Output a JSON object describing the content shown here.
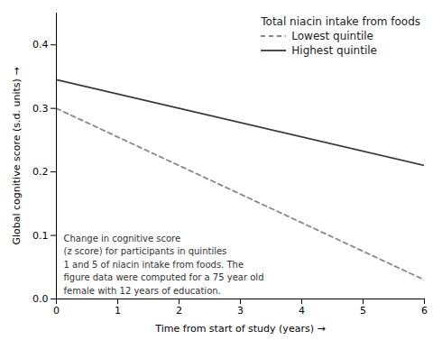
{
  "chart_data": {
    "type": "line",
    "xlabel": "Time from start of study (years)",
    "ylabel": "Global cognitive score (s.d. units)",
    "xlim": [
      0,
      6
    ],
    "ylim": [
      0.0,
      0.45
    ],
    "xticks": [
      0,
      1,
      2,
      3,
      4,
      5,
      6
    ],
    "yticks": [
      {
        "value": 0.0,
        "label": "0.0"
      },
      0.1,
      0.2,
      0.3,
      0.4
    ],
    "x": [
      0,
      6
    ],
    "series": [
      {
        "name": "Highest quintile",
        "color": "#3a3a3a",
        "line_style": "solid",
        "values": [
          0.345,
          0.21
        ]
      },
      {
        "name": "Lowest quintile",
        "color": "#888888",
        "line_style": "dashed",
        "values": [
          0.3,
          0.03
        ]
      }
    ],
    "legend_title": "Total niacin intake from foods",
    "legend": "upper right",
    "grid": false,
    "annotation": "Change in cognitive score\n(z score) for participants in quintiles\n1 and 5 of niacin intake from foods. The\nfigure data were computed for a 75 year old\nfemale with 12 years of education."
  }
}
